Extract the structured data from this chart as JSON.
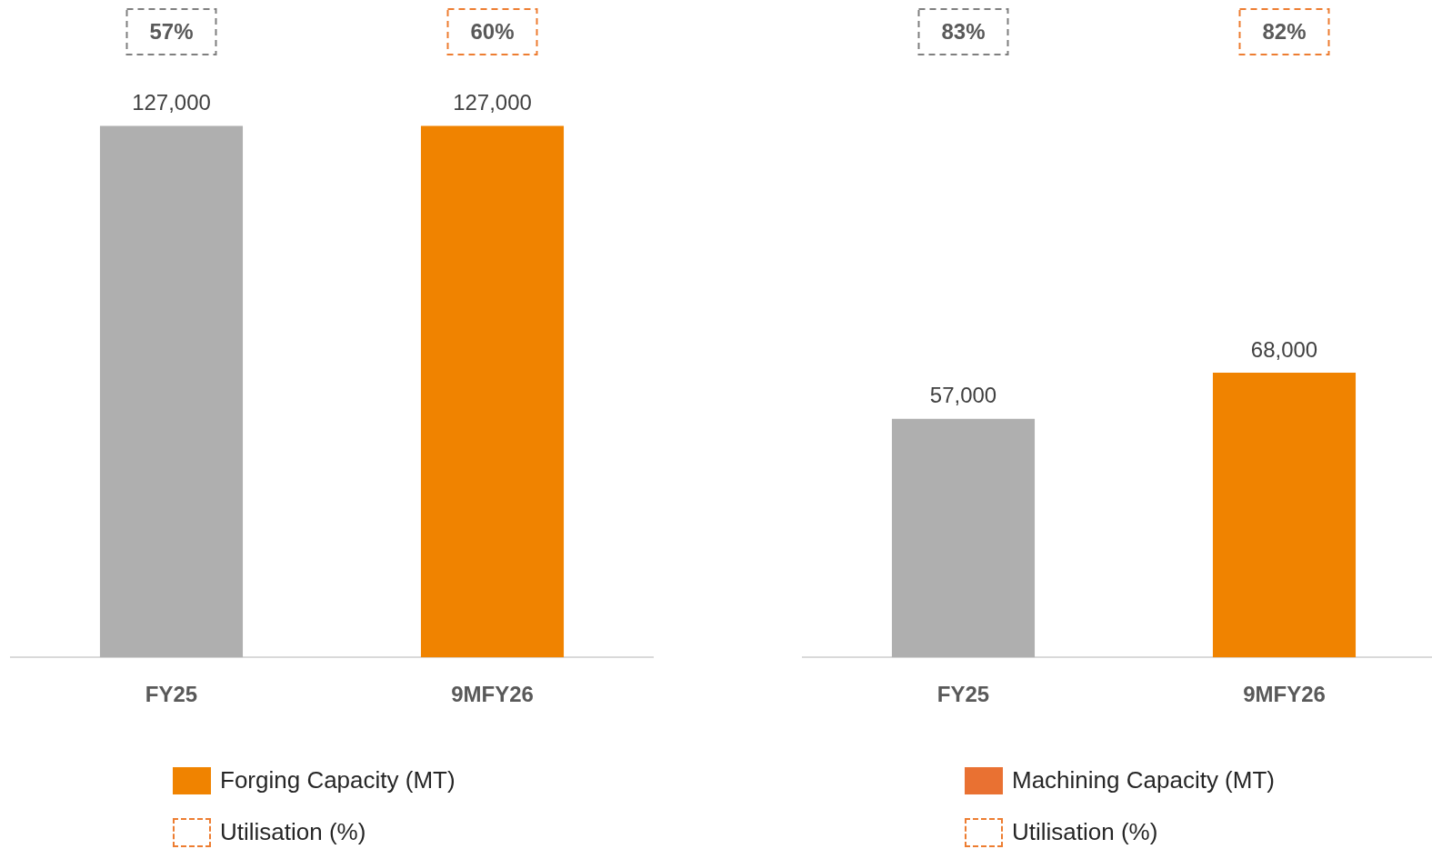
{
  "chart_data": [
    {
      "type": "bar",
      "categories": [
        "FY25",
        "9MFY26"
      ],
      "legend": "bottom",
      "annotations": [
        "57%",
        "60%",
        "Utilisation (%)"
      ],
      "series": [
        {
          "name": "Forging Capacity (MT)",
          "type": "bar",
          "color": "#f08300",
          "colors": [
            "#afafaf",
            "#f08300"
          ],
          "values": [
            127000,
            127000
          ],
          "value_labels": [
            "127,000",
            "127,000"
          ]
        }
      ]
    },
    {
      "type": "bar",
      "categories": [
        "FY25",
        "9MFY26"
      ],
      "legend": "bottom",
      "annotations": [
        "83%",
        "82%",
        "Utilisation (%)"
      ],
      "series": [
        {
          "name": "Machining Capacity (MT)",
          "type": "bar",
          "color": "#e97132",
          "colors": [
            "#afafaf",
            "#f08300"
          ],
          "values": [
            57000,
            68000
          ],
          "value_labels": [
            "57,000",
            "68,000"
          ]
        }
      ]
    }
  ]
}
